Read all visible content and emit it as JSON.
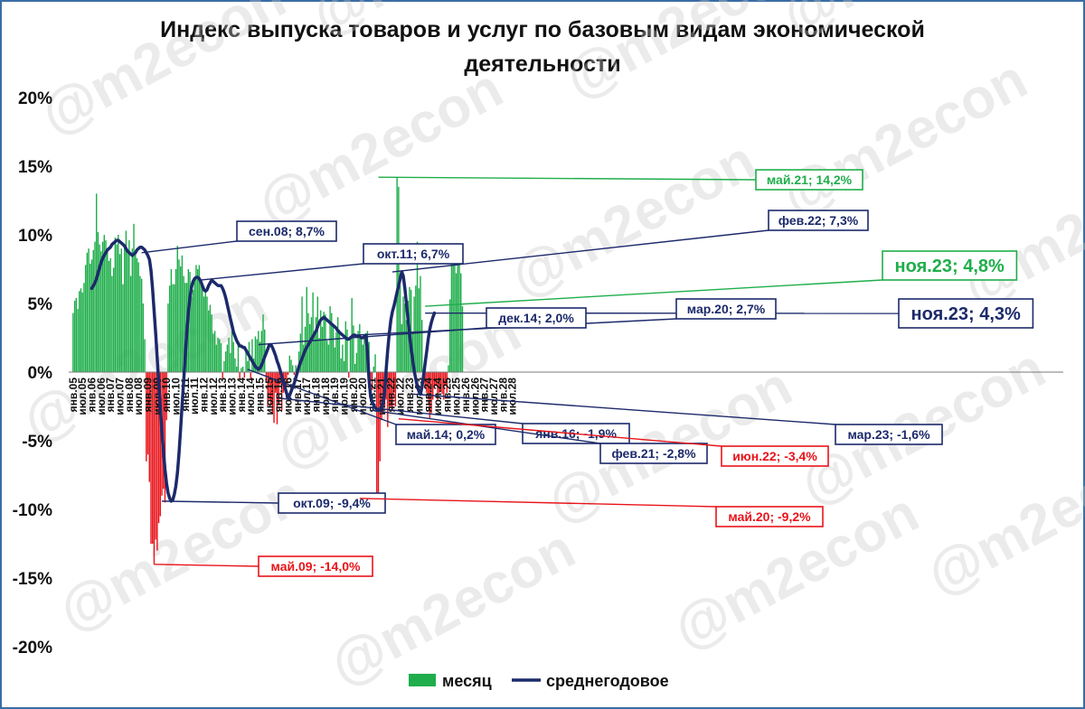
{
  "title_lines": [
    "Индекс выпуска товаров и услуг по базовым видам экономической",
    "деятельности"
  ],
  "watermark": "@m2econ",
  "colors": {
    "positive_bar": "#1fae4b",
    "negative_bar": "#e8141a",
    "line": "#1c2a6b",
    "callout_green": "#1fae4b",
    "callout_red": "#e8141a",
    "callout_navy": "#1c2a6b"
  },
  "chart_data": {
    "type": "bar",
    "ylim": [
      -20,
      20
    ],
    "yticks": [
      20,
      15,
      10,
      5,
      0,
      -5,
      -10,
      -15,
      -20
    ],
    "ytick_labels": [
      "20%",
      "15%",
      "10%",
      "5%",
      "0%",
      "-5%",
      "-10%",
      "-15%",
      "-20%"
    ],
    "x_range": [
      "янв.05",
      "дек.28"
    ],
    "xtick_labels": [
      "янв.05",
      "июл.05",
      "янв.06",
      "июл.06",
      "янв.07",
      "июл.07",
      "янв.08",
      "июл.08",
      "янв.09",
      "июл.09",
      "янв.10",
      "июл.10",
      "янв.11",
      "июл.11",
      "янв.12",
      "июл.12",
      "янв.13",
      "июл.13",
      "янв.14",
      "июл.14",
      "янв.15",
      "июл.15",
      "янв.16",
      "июл.16",
      "янв.17",
      "июл.17",
      "янв.18",
      "июл.18",
      "янв.19",
      "июл.19",
      "янв.20",
      "июл.20",
      "янв.21",
      "июл.21",
      "янв.22",
      "июл.22",
      "янв.23",
      "июл.23",
      "янв.24",
      "июл.24",
      "янв.25",
      "июл.25",
      "янв.26",
      "июл.26",
      "янв.27",
      "июл.27",
      "янв.28",
      "июл.28"
    ],
    "legend": [
      {
        "label": "месяц",
        "kind": "bar"
      },
      {
        "label": "среднегодовое",
        "kind": "line"
      }
    ],
    "legend_position": "bottom",
    "series": [
      {
        "name": "месяц",
        "kind": "bar",
        "values": [
          4.3,
          5.2,
          5.4,
          4.6,
          5.9,
          6.1,
          5.8,
          6.5,
          7.8,
          8.7,
          9.0,
          7.9,
          8.2,
          8.9,
          9.5,
          13.0,
          10.2,
          9.3,
          8.8,
          9.5,
          10.0,
          9.6,
          9.0,
          8.1,
          8.3,
          7.0,
          7.6,
          9.8,
          9.3,
          10.0,
          8.6,
          9.0,
          6.4,
          9.1,
          10.3,
          8.9,
          9.6,
          7.0,
          9.0,
          10.8,
          8.8,
          8.3,
          8.0,
          7.0,
          6.8,
          5.0,
          2.4,
          -6.5,
          -6.0,
          -8.0,
          -12.5,
          -12.5,
          -14.0,
          -12.2,
          -13.0,
          -11.0,
          -10.5,
          -9.0,
          -8.5,
          -9.5,
          -3.5,
          5.0,
          6.3,
          7.5,
          6.4,
          6.4,
          7.5,
          9.2,
          8.2,
          7.7,
          8.5,
          7.0,
          6.5,
          6.5,
          7.5,
          7.3,
          5.5,
          6.0,
          6.9,
          7.8,
          7.5,
          7.8,
          6.5,
          6.5,
          5.5,
          6.0,
          5.5,
          4.5,
          4.9,
          4.2,
          2.8,
          3.0,
          2.0,
          2.5,
          2.4,
          2.1,
          -0.5,
          0.8,
          1.5,
          2.0,
          2.5,
          1.4,
          3.0,
          2.2,
          1.0,
          0.4,
          2.0,
          -0.5,
          0.3,
          0.4,
          -0.4,
          1.6,
          0.8,
          2.2,
          -0.5,
          2.4,
          1.0,
          2.6,
          2.4,
          3.0,
          2.2,
          3.0,
          4.2,
          3.1,
          -0.6,
          -2.5,
          -2.0,
          -2.4,
          -3.0,
          -3.7,
          -1.5,
          -3.8,
          -2.4,
          -0.9,
          -2.8,
          -1.5,
          -0.5,
          -1.0,
          -0.2,
          1.2,
          0.9,
          0.5,
          -0.2,
          0.5,
          0.2,
          1.5,
          2.8,
          5.5,
          2.0,
          3.3,
          6.2,
          4.3,
          3.5,
          4.0,
          5.8,
          3.0,
          4.0,
          5.5,
          2.5,
          4.5,
          3.3,
          4.4,
          4.2,
          2.3,
          2.0,
          4.8,
          4.3,
          3.4,
          1.8,
          2.9,
          4.0,
          3.1,
          1.0,
          2.0,
          0.8,
          3.7,
          3.1,
          -0.4,
          2.5,
          5.4,
          3.4,
          0.6,
          1.4,
          3.0,
          3.5,
          2.6,
          2.0,
          2.5,
          1.8,
          3.0,
          2.2,
          -0.6,
          -1.3,
          0.4,
          1.3,
          -9.0,
          -9.2,
          -6.5,
          -3.5,
          -3.0,
          -2.5,
          -2.0,
          -4.0,
          -2.5,
          -2.5,
          -2.8,
          -1.5,
          -2.5,
          14.2,
          13.5,
          6.3,
          3.5,
          5.5,
          5.0,
          3.8,
          5.2,
          6.2,
          6.0,
          2.8,
          5.5,
          6.3,
          9.5,
          6.1,
          7.0,
          3.8,
          -0.8,
          -1.2,
          -1.5,
          -2.0,
          -3.4,
          -3.0,
          -2.0,
          -1.0,
          -1.0,
          -2.0,
          -1.5,
          -1.4,
          -1.6,
          -2.0,
          -0.9,
          -1.5,
          0.5,
          5.3,
          8.4,
          8.4,
          8.6,
          7.2,
          8.0,
          8.9,
          7.2,
          4.8
        ]
      },
      {
        "name": "среднегодовое",
        "kind": "line",
        "start": "янв.06",
        "values": [
          6.1,
          6.3,
          6.5,
          6.8,
          7.2,
          7.6,
          8.0,
          8.3,
          8.5,
          8.7,
          8.9,
          9.0,
          9.1,
          9.3,
          9.4,
          9.5,
          9.6,
          9.6,
          9.5,
          9.4,
          9.3,
          9.2,
          9.0,
          8.8,
          8.7,
          8.6,
          8.5,
          8.6,
          8.7,
          8.9,
          9.0,
          9.1,
          9.1,
          9.0,
          8.9,
          8.7,
          8.5,
          8.2,
          7.4,
          6.1,
          4.5,
          2.8,
          1.0,
          -0.8,
          -2.6,
          -4.3,
          -5.8,
          -7.1,
          -8.1,
          -8.8,
          -9.2,
          -9.4,
          -9.3,
          -8.9,
          -8.3,
          -7.3,
          -5.9,
          -4.2,
          -2.4,
          -0.6,
          1.2,
          2.9,
          4.3,
          5.4,
          6.2,
          6.6,
          6.8,
          6.9,
          6.9,
          6.8,
          6.6,
          6.3,
          6.0,
          5.9,
          6.0,
          6.3,
          6.5,
          6.7,
          6.6,
          6.5,
          6.4,
          6.3,
          6.3,
          6.3,
          6.1,
          5.8,
          5.4,
          4.9,
          4.4,
          3.9,
          3.4,
          2.9,
          2.6,
          2.3,
          2.1,
          1.9,
          1.9,
          1.8,
          1.8,
          1.6,
          1.4,
          1.2,
          1.0,
          0.8,
          0.6,
          0.4,
          0.3,
          0.2,
          0.3,
          0.5,
          0.8,
          1.1,
          1.4,
          1.7,
          2.0,
          2.0,
          1.8,
          1.5,
          1.2,
          0.8,
          0.5,
          0.1,
          -0.3,
          -0.7,
          -1.1,
          -1.5,
          -1.9,
          -1.7,
          -1.4,
          -1.1,
          -0.8,
          -0.4,
          0.0,
          0.4,
          0.7,
          1.0,
          1.3,
          1.6,
          1.8,
          2.0,
          2.2,
          2.4,
          2.6,
          2.8,
          3.0,
          3.3,
          3.6,
          3.8,
          3.9,
          4.0,
          3.9,
          3.8,
          3.7,
          3.6,
          3.5,
          3.4,
          3.3,
          3.2,
          3.0,
          2.9,
          2.8,
          2.7,
          2.6,
          2.5,
          2.4,
          2.4,
          2.5,
          2.6,
          2.7,
          2.7,
          2.6,
          2.6,
          2.6,
          2.5,
          2.5,
          2.6,
          2.7,
          1.5,
          -0.5,
          -1.8,
          -2.2,
          -2.4,
          -2.6,
          -2.7,
          -2.8,
          -2.7,
          -2.6,
          -2.3,
          -1.5,
          0.2,
          1.6,
          2.8,
          3.8,
          4.4,
          4.8,
          5.3,
          5.8,
          6.3,
          6.8,
          7.3,
          7.0,
          6.1,
          5.0,
          3.9,
          2.8,
          1.8,
          0.9,
          0.1,
          -0.5,
          -1.0,
          -1.4,
          -1.6,
          -1.1,
          -0.3,
          0.6,
          1.5,
          2.4,
          3.1,
          3.6,
          4.0,
          4.3
        ]
      }
    ],
    "annotations": [
      {
        "label": "май.21; 14,2%",
        "color": "green"
      },
      {
        "label": "фев.22; 7,3%",
        "color": "navy"
      },
      {
        "label": "сен.08; 8,7%",
        "color": "navy"
      },
      {
        "label": "окт.11; 6,7%",
        "color": "navy"
      },
      {
        "label": "ноя.23; 4,8%",
        "color": "green"
      },
      {
        "label": "ноя.23; 4,3%",
        "color": "navy"
      },
      {
        "label": "мар.20; 2,7%",
        "color": "navy"
      },
      {
        "label": "дек.14; 2,0%",
        "color": "navy"
      },
      {
        "label": "май.14; 0,2%",
        "color": "navy"
      },
      {
        "label": "янв.16; -1,9%",
        "color": "navy"
      },
      {
        "label": "мар.23; -1,6%",
        "color": "navy"
      },
      {
        "label": "фев.21; -2,8%",
        "color": "navy"
      },
      {
        "label": "июн.22; -3,4%",
        "color": "red"
      },
      {
        "label": "окт.09; -9,4%",
        "color": "navy"
      },
      {
        "label": "май.20; -9,2%",
        "color": "red"
      },
      {
        "label": "май.09; -14,0%",
        "color": "red"
      }
    ]
  }
}
